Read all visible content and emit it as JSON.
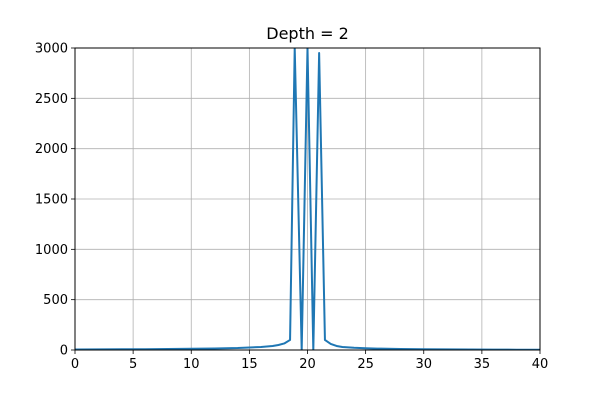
{
  "chart_data": {
    "type": "line",
    "title": "Depth = 2",
    "xlabel": "",
    "ylabel": "",
    "xlim": [
      0,
      40
    ],
    "ylim": [
      0,
      3000
    ],
    "grid": true,
    "x_ticks": [
      0,
      5,
      10,
      15,
      20,
      25,
      30,
      35,
      40
    ],
    "y_ticks": [
      0,
      500,
      1000,
      1500,
      2000,
      2500,
      3000
    ],
    "colors": {
      "line": "#1f77b4",
      "grid": "#b0b0b0",
      "axes": "#000000"
    },
    "series": [
      {
        "x": [
          0,
          2,
          4,
          6,
          8,
          10,
          12,
          14,
          15,
          16,
          17,
          17.5,
          18,
          18.5,
          18.9,
          19.5,
          20.0,
          20.5,
          21.0,
          21.5,
          22,
          22.5,
          23,
          24,
          25,
          26,
          28,
          30,
          32,
          34,
          36,
          38,
          40
        ],
        "y": [
          5,
          6,
          7,
          8,
          10,
          12,
          15,
          20,
          25,
          30,
          40,
          50,
          65,
          100,
          3000,
          0,
          3000,
          0,
          2950,
          100,
          60,
          40,
          30,
          22,
          18,
          14,
          10,
          8,
          6,
          5,
          4,
          3,
          2
        ]
      }
    ]
  }
}
